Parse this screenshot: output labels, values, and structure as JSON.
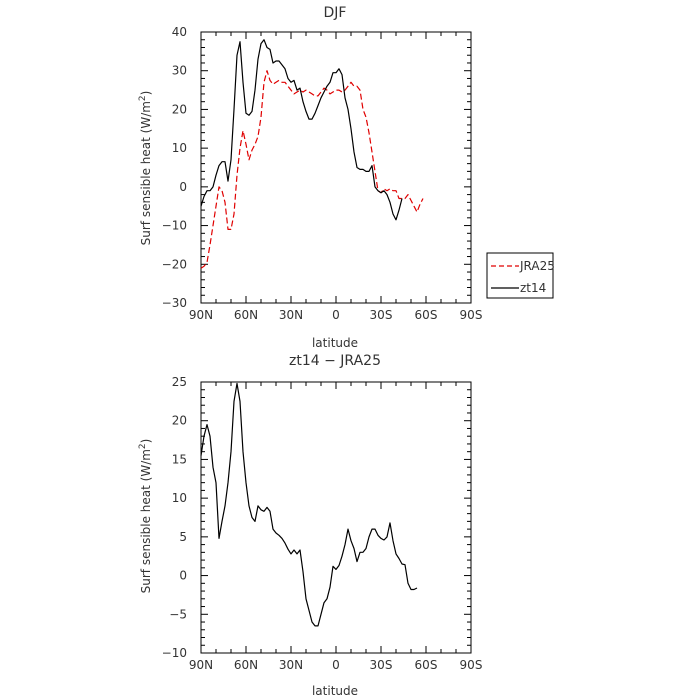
{
  "chart_data": [
    {
      "type": "line",
      "title": "DJF",
      "xlabel": "latitude",
      "ylabel_main": "Surf sensible heat (W/m",
      "ylabel_sup": "2",
      "ylabel_close": ")",
      "xlim": [
        90,
        -90
      ],
      "ylim": [
        -30,
        40
      ],
      "xticks": [
        90,
        60,
        30,
        0,
        -30,
        -60,
        -90
      ],
      "xtick_labels": [
        "90N",
        "60N",
        "30N",
        "0",
        "30S",
        "60S",
        "90S"
      ],
      "yticks": [
        -30,
        -20,
        -10,
        0,
        10,
        20,
        30,
        40
      ],
      "ytick_labels": [
        "−30",
        "−20",
        "−10",
        "0",
        "10",
        "20",
        "30",
        "40"
      ],
      "legend": [
        {
          "name": "JRA25",
          "color": "#e00000",
          "dashed": true
        },
        {
          "name": "zt14",
          "color": "#000000",
          "dashed": false
        }
      ],
      "series": [
        {
          "name": "JRA25",
          "color": "#e00000",
          "dashed": true,
          "points": [
            [
              90,
              -21
            ],
            [
              88,
              -20.5
            ],
            [
              86,
              -19.5
            ],
            [
              84,
              -15
            ],
            [
              82,
              -10
            ],
            [
              80,
              -5
            ],
            [
              78,
              0
            ],
            [
              76,
              -1
            ],
            [
              74,
              -4
            ],
            [
              72,
              -11
            ],
            [
              70,
              -11
            ],
            [
              68,
              -7
            ],
            [
              66,
              3
            ],
            [
              64,
              10
            ],
            [
              62,
              14.5
            ],
            [
              60,
              11
            ],
            [
              58,
              7
            ],
            [
              56,
              9.5
            ],
            [
              54,
              11
            ],
            [
              52,
              13
            ],
            [
              50,
              18
            ],
            [
              48,
              27
            ],
            [
              46,
              30
            ],
            [
              44,
              27.5
            ],
            [
              42,
              26.5
            ],
            [
              40,
              27
            ],
            [
              38,
              27.5
            ],
            [
              36,
              27
            ],
            [
              34,
              27
            ],
            [
              32,
              26
            ],
            [
              30,
              25
            ],
            [
              28,
              24
            ],
            [
              26,
              24.5
            ],
            [
              24,
              25
            ],
            [
              22,
              24.5
            ],
            [
              20,
              25
            ],
            [
              18,
              24.5
            ],
            [
              16,
              24
            ],
            [
              14,
              23.5
            ],
            [
              12,
              23.5
            ],
            [
              10,
              24.5
            ],
            [
              8,
              25.5
            ],
            [
              6,
              25
            ],
            [
              4,
              24
            ],
            [
              2,
              24.5
            ],
            [
              0,
              25
            ],
            [
              -2,
              25
            ],
            [
              -4,
              24.5
            ],
            [
              -6,
              25
            ],
            [
              -8,
              26
            ],
            [
              -10,
              27
            ],
            [
              -12,
              26
            ],
            [
              -14,
              26
            ],
            [
              -16,
              25
            ],
            [
              -18,
              20
            ],
            [
              -20,
              18
            ],
            [
              -22,
              14
            ],
            [
              -24,
              9
            ],
            [
              -26,
              4
            ],
            [
              -28,
              -1
            ],
            [
              -30,
              -1.5
            ],
            [
              -32,
              -0.5
            ],
            [
              -34,
              -1
            ],
            [
              -36,
              -0.5
            ],
            [
              -38,
              -1
            ],
            [
              -40,
              -1
            ],
            [
              -42,
              -3
            ],
            [
              -44,
              -3
            ],
            [
              -46,
              -3
            ],
            [
              -48,
              -2
            ],
            [
              -50,
              -3.5
            ],
            [
              -52,
              -5
            ],
            [
              -54,
              -6.5
            ],
            [
              -56,
              -4.5
            ],
            [
              -58,
              -3
            ]
          ]
        },
        {
          "name": "zt14",
          "color": "#000000",
          "dashed": false,
          "points": [
            [
              90,
              -5
            ],
            [
              88,
              -2.5
            ],
            [
              86,
              -1
            ],
            [
              84,
              -1
            ],
            [
              82,
              0
            ],
            [
              80,
              3
            ],
            [
              78,
              5.5
            ],
            [
              76,
              6.5
            ],
            [
              74,
              6.5
            ],
            [
              72,
              1.5
            ],
            [
              70,
              7
            ],
            [
              68,
              20
            ],
            [
              66,
              34
            ],
            [
              64,
              37.5
            ],
            [
              62,
              27
            ],
            [
              60,
              19
            ],
            [
              58,
              18.5
            ],
            [
              56,
              19.5
            ],
            [
              54,
              25
            ],
            [
              52,
              33
            ],
            [
              50,
              37
            ],
            [
              48,
              38
            ],
            [
              46,
              36
            ],
            [
              44,
              35.5
            ],
            [
              42,
              32
            ],
            [
              40,
              32.5
            ],
            [
              38,
              32.5
            ],
            [
              36,
              31.5
            ],
            [
              34,
              30.5
            ],
            [
              32,
              28
            ],
            [
              30,
              27
            ],
            [
              28,
              27.5
            ],
            [
              26,
              25
            ],
            [
              24,
              25.5
            ],
            [
              22,
              22
            ],
            [
              20,
              19.5
            ],
            [
              18,
              17.5
            ],
            [
              16,
              17.5
            ],
            [
              14,
              19
            ],
            [
              12,
              21
            ],
            [
              10,
              23
            ],
            [
              8,
              24.5
            ],
            [
              6,
              26
            ],
            [
              4,
              27
            ],
            [
              2,
              29.5
            ],
            [
              0,
              29.5
            ],
            [
              -2,
              30.5
            ],
            [
              -4,
              29
            ],
            [
              -6,
              23
            ],
            [
              -8,
              20
            ],
            [
              -10,
              15
            ],
            [
              -12,
              9
            ],
            [
              -14,
              5
            ],
            [
              -16,
              4.5
            ],
            [
              -18,
              4.5
            ],
            [
              -20,
              4
            ],
            [
              -22,
              4
            ],
            [
              -24,
              5.5
            ],
            [
              -26,
              0
            ],
            [
              -28,
              -1
            ],
            [
              -30,
              -1.5
            ],
            [
              -32,
              -1
            ],
            [
              -34,
              -2
            ],
            [
              -36,
              -4
            ],
            [
              -38,
              -7
            ],
            [
              -40,
              -8.5
            ],
            [
              -42,
              -6
            ],
            [
              -44,
              -3
            ]
          ]
        }
      ]
    },
    {
      "type": "line",
      "title": "zt14 − JRA25",
      "xlabel": "latitude",
      "ylabel_main": "Surf sensible heat (W/m",
      "ylabel_sup": "2",
      "ylabel_close": ")",
      "xlim": [
        90,
        -90
      ],
      "ylim": [
        -10,
        25
      ],
      "xticks": [
        90,
        60,
        30,
        0,
        -30,
        -60,
        -90
      ],
      "xtick_labels": [
        "90N",
        "60N",
        "30N",
        "0",
        "30S",
        "60S",
        "90S"
      ],
      "yticks": [
        -10,
        -5,
        0,
        5,
        10,
        15,
        20,
        25
      ],
      "ytick_labels": [
        "−10",
        "−5",
        "0",
        "5",
        "10",
        "15",
        "20",
        "25"
      ],
      "series": [
        {
          "name": "zt14 − JRA25",
          "color": "#000000",
          "dashed": false,
          "points": [
            [
              90,
              15.5
            ],
            [
              88,
              18
            ],
            [
              86,
              19.5
            ],
            [
              84,
              18
            ],
            [
              82,
              14
            ],
            [
              80,
              12
            ],
            [
              78,
              4.8
            ],
            [
              76,
              7
            ],
            [
              74,
              9
            ],
            [
              72,
              12
            ],
            [
              70,
              16
            ],
            [
              68,
              22.5
            ],
            [
              66,
              24.8
            ],
            [
              64,
              22.5
            ],
            [
              62,
              16
            ],
            [
              60,
              12
            ],
            [
              58,
              9
            ],
            [
              56,
              7.5
            ],
            [
              54,
              7
            ],
            [
              52,
              9
            ],
            [
              50,
              8.5
            ],
            [
              48,
              8.3
            ],
            [
              46,
              8.8
            ],
            [
              44,
              8.3
            ],
            [
              42,
              6
            ],
            [
              40,
              5.5
            ],
            [
              38,
              5.2
            ],
            [
              36,
              4.8
            ],
            [
              34,
              4.2
            ],
            [
              32,
              3.4
            ],
            [
              30,
              2.8
            ],
            [
              28,
              3.3
            ],
            [
              26,
              2.8
            ],
            [
              24,
              3.3
            ],
            [
              22,
              0.5
            ],
            [
              20,
              -3
            ],
            [
              18,
              -4.5
            ],
            [
              16,
              -6
            ],
            [
              14,
              -6.5
            ],
            [
              12,
              -6.5
            ],
            [
              10,
              -5
            ],
            [
              8,
              -3.5
            ],
            [
              6,
              -3
            ],
            [
              4,
              -1.5
            ],
            [
              2,
              1.2
            ],
            [
              0,
              0.8
            ],
            [
              -2,
              1.3
            ],
            [
              -4,
              2.5
            ],
            [
              -6,
              4
            ],
            [
              -8,
              6
            ],
            [
              -10,
              4.5
            ],
            [
              -12,
              3.5
            ],
            [
              -14,
              1.8
            ],
            [
              -16,
              3
            ],
            [
              -18,
              3
            ],
            [
              -20,
              3.5
            ],
            [
              -22,
              5
            ],
            [
              -24,
              6
            ],
            [
              -26,
              6
            ],
            [
              -28,
              5.2
            ],
            [
              -30,
              4.8
            ],
            [
              -32,
              4.6
            ],
            [
              -34,
              5
            ],
            [
              -36,
              6.8
            ],
            [
              -38,
              4.5
            ],
            [
              -40,
              2.8
            ],
            [
              -42,
              2.2
            ],
            [
              -44,
              1.5
            ],
            [
              -46,
              1.4
            ],
            [
              -48,
              -1
            ],
            [
              -50,
              -1.8
            ],
            [
              -52,
              -1.8
            ],
            [
              -54,
              -1.6
            ]
          ]
        }
      ]
    }
  ]
}
